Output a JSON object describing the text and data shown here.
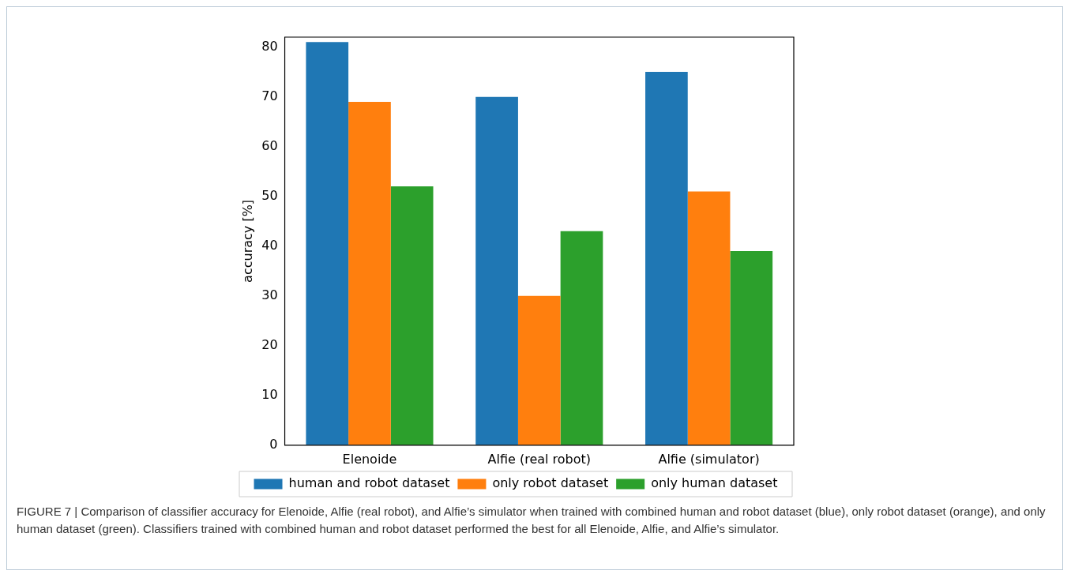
{
  "chart_data": {
    "type": "bar",
    "ylabel": "accuracy [%]",
    "categories": [
      "Elenoide",
      "Alfie (real robot)",
      "Alfie (simulator)"
    ],
    "series": [
      {
        "name": "human and robot dataset",
        "color": "#1f77b4",
        "values": [
          81,
          70,
          75
        ]
      },
      {
        "name": "only robot dataset",
        "color": "#ff7f0e",
        "values": [
          69,
          30,
          51
        ]
      },
      {
        "name": "only human dataset",
        "color": "#2ca02c",
        "values": [
          52,
          43,
          39
        ]
      }
    ],
    "ylim": [
      0,
      82
    ],
    "yticks": [
      0,
      10,
      20,
      30,
      40,
      50,
      60,
      70,
      80
    ],
    "grid": false,
    "legend": "bottom",
    "annotations": [
      "FIGURE 7 | Comparison of classifier accuracy for Elenoide, Alfie (real robot), and Alfie’s simulator when trained with combined human and robot dataset (blue), only robot dataset (orange), and only human dataset (green). Classifiers trained with combined human and robot dataset performed the best for all Elenoide, Alfie, and Alfie’s simulator."
    ]
  }
}
